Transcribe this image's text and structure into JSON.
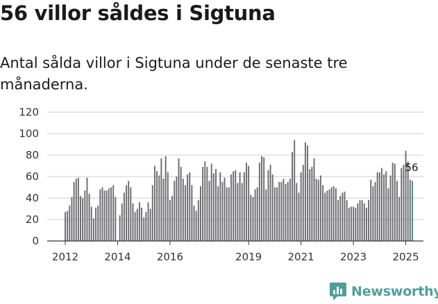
{
  "title": "56 villor såldes i Sigtuna",
  "subtitle": "Antal sålda villor i Sigtuna under de senaste tre månaderna.",
  "brand": {
    "name": "Newsworthy",
    "icon": "bar-chart-speech-bubble-icon",
    "color": "#4f9e9a"
  },
  "colors": {
    "bar": "#6d6d72",
    "highlight": "#2a9d8f",
    "axis": "#333333",
    "grid": "#cccccc"
  },
  "chart_data": {
    "type": "bar",
    "title": "56 villor såldes i Sigtuna",
    "xlabel": "",
    "ylabel": "",
    "ylim": [
      0,
      120
    ],
    "yticks": [
      "0",
      "20",
      "40",
      "60",
      "80",
      "100",
      "120"
    ],
    "xticks": [
      {
        "label": "2012",
        "x": 2012.0
      },
      {
        "label": "2014",
        "x": 2014.0
      },
      {
        "label": "2016",
        "x": 2016.0
      },
      {
        "label": "2019",
        "x": 2019.0
      },
      {
        "label": "2021",
        "x": 2021.0
      },
      {
        "label": "2023",
        "x": 2023.0
      },
      {
        "label": "2025",
        "x": 2025.0
      }
    ],
    "start_year": 2012,
    "start_month": 1,
    "values": [
      27,
      28,
      33,
      41,
      55,
      58,
      59,
      42,
      40,
      47,
      59,
      44,
      32,
      21,
      31,
      33,
      48,
      50,
      47,
      47,
      49,
      50,
      52,
      41,
      0,
      24,
      35,
      45,
      52,
      56,
      50,
      35,
      27,
      30,
      36,
      31,
      22,
      27,
      36,
      30,
      52,
      70,
      65,
      61,
      77,
      58,
      79,
      64,
      38,
      42,
      56,
      60,
      77,
      69,
      58,
      52,
      62,
      64,
      52,
      33,
      28,
      38,
      51,
      69,
      74,
      69,
      56,
      72,
      63,
      67,
      51,
      64,
      55,
      59,
      50,
      50,
      62,
      65,
      66,
      54,
      64,
      54,
      64,
      73,
      70,
      43,
      41,
      48,
      50,
      73,
      79,
      78,
      48,
      66,
      71,
      62,
      50,
      50,
      55,
      55,
      58,
      53,
      55,
      58,
      83,
      94,
      54,
      45,
      64,
      71,
      92,
      89,
      67,
      69,
      77,
      58,
      57,
      61,
      52,
      45,
      47,
      48,
      50,
      51,
      49,
      38,
      42,
      45,
      46,
      38,
      31,
      32,
      32,
      31,
      35,
      38,
      38,
      35,
      31,
      38,
      57,
      51,
      55,
      64,
      64,
      68,
      62,
      65,
      49,
      61,
      73,
      72,
      56,
      41,
      68,
      71,
      84,
      74,
      57,
      56
    ],
    "highlight_last": 1,
    "last_value_label": "56"
  }
}
